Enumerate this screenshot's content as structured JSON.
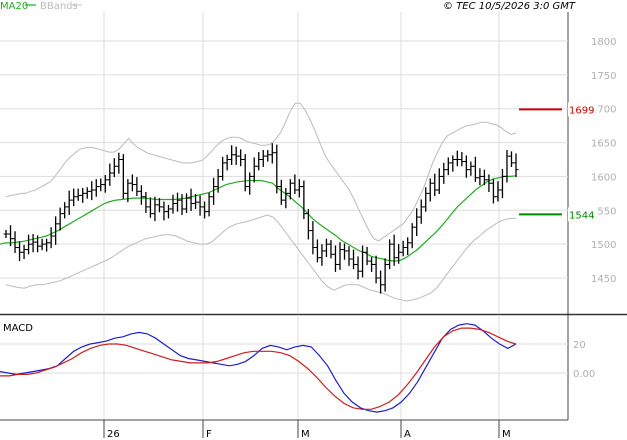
{
  "header": {
    "ma20_label": "MA20",
    "bbands_label": "BBands",
    "timestamp": "© TEC 10/5/2026 3:0 GMT"
  },
  "macd_panel": {
    "title": "MACD"
  },
  "colors": {
    "ma20": "#22aa22",
    "bbands": "#bbbbbb",
    "bars": "#000000",
    "resistance": "#cc0000",
    "support": "#008800",
    "macd": "#1f1fcc",
    "signal": "#cc1f1f",
    "grid": "#dddddd",
    "axis_text": "#b0b0b0"
  },
  "chart_data": [
    {
      "type": "ohlc",
      "y_ticks": [
        1450,
        1500,
        1550,
        1600,
        1650,
        1700,
        1750,
        1800
      ],
      "y_tick_labels": [
        "1450",
        "1500",
        "1550",
        "1600",
        "1650",
        "1700",
        "1750",
        "1800"
      ],
      "ylim": [
        1400,
        1825
      ],
      "x_tick_labels": [
        "26",
        "F",
        "M",
        "A",
        "M"
      ],
      "grid": true,
      "levels": [
        {
          "name": "resistance",
          "value": 1699,
          "label": "1699"
        },
        {
          "name": "support",
          "value": 1544,
          "label": "1544"
        }
      ],
      "closes": [
        1515,
        1508,
        1495,
        1488,
        1492,
        1500,
        1503,
        1497,
        1500,
        1502,
        1512,
        1530,
        1545,
        1555,
        1565,
        1570,
        1572,
        1575,
        1578,
        1580,
        1585,
        1588,
        1595,
        1605,
        1615,
        1625,
        1575,
        1590,
        1588,
        1578,
        1570,
        1555,
        1545,
        1558,
        1555,
        1548,
        1552,
        1560,
        1565,
        1552,
        1568,
        1560,
        1562,
        1555,
        1548,
        1570,
        1585,
        1600,
        1620,
        1625,
        1632,
        1630,
        1625,
        1585,
        1600,
        1615,
        1625,
        1630,
        1632,
        1635,
        1585,
        1565,
        1575,
        1590,
        1580,
        1585,
        1545,
        1520,
        1495,
        1480,
        1490,
        1500,
        1485,
        1470,
        1492,
        1490,
        1478,
        1470,
        1460,
        1488,
        1475,
        1470,
        1450,
        1440,
        1470,
        1500,
        1480,
        1488,
        1495,
        1502,
        1525,
        1540,
        1555,
        1575,
        1590,
        1580,
        1600,
        1610,
        1620,
        1625,
        1625,
        1622,
        1610,
        1615,
        1598,
        1600,
        1595,
        1590,
        1570,
        1580,
        1600,
        1630,
        1620,
        1610
      ],
      "bb_upper": [
        1570,
        1572,
        1573,
        1575,
        1575,
        1578,
        1580,
        1584,
        1588,
        1592,
        1600,
        1610,
        1620,
        1628,
        1634,
        1640,
        1642,
        1643,
        1642,
        1640,
        1638,
        1636,
        1636,
        1640,
        1648,
        1656,
        1648,
        1642,
        1638,
        1634,
        1632,
        1630,
        1628,
        1626,
        1624,
        1622,
        1620,
        1620,
        1620,
        1622,
        1624,
        1630,
        1638,
        1646,
        1652,
        1656,
        1658,
        1658,
        1656,
        1652,
        1650,
        1648,
        1646,
        1646,
        1648,
        1655,
        1665,
        1680,
        1697,
        1708,
        1708,
        1698,
        1684,
        1668,
        1650,
        1632,
        1620,
        1610,
        1600,
        1590,
        1580,
        1566,
        1550,
        1535,
        1520,
        1508,
        1505,
        1510,
        1515,
        1520,
        1525,
        1530,
        1540,
        1550,
        1565,
        1580,
        1600,
        1620,
        1636,
        1650,
        1660,
        1664,
        1668,
        1672,
        1675,
        1676,
        1678,
        1680,
        1680,
        1678,
        1676,
        1672,
        1666,
        1662,
        1664
      ],
      "ma20": [
        1500,
        1502,
        1502,
        1503,
        1504,
        1506,
        1508,
        1510,
        1512,
        1516,
        1520,
        1525,
        1530,
        1535,
        1540,
        1545,
        1550,
        1555,
        1560,
        1563,
        1565,
        1566,
        1567,
        1568,
        1568,
        1568,
        1567,
        1566,
        1566,
        1566,
        1566,
        1567,
        1568,
        1570,
        1572,
        1574,
        1576,
        1580,
        1584,
        1588,
        1590,
        1592,
        1593,
        1594,
        1594,
        1594,
        1592,
        1590,
        1582,
        1576,
        1570,
        1562,
        1555,
        1546,
        1537,
        1530,
        1524,
        1518,
        1512,
        1505,
        1500,
        1495,
        1490,
        1487,
        1482,
        1480,
        1478,
        1476,
        1475,
        1476,
        1480,
        1486,
        1492,
        1500,
        1508,
        1516,
        1525,
        1535,
        1546,
        1556,
        1564,
        1572,
        1580,
        1586,
        1592,
        1596,
        1598,
        1600,
        1600,
        1601
      ],
      "bb_lower": [
        1440,
        1438,
        1436,
        1435,
        1438,
        1440,
        1440,
        1442,
        1444,
        1446,
        1450,
        1454,
        1458,
        1462,
        1466,
        1470,
        1474,
        1478,
        1484,
        1490,
        1496,
        1500,
        1504,
        1508,
        1510,
        1512,
        1514,
        1514,
        1512,
        1508,
        1504,
        1502,
        1500,
        1500,
        1504,
        1512,
        1520,
        1526,
        1530,
        1532,
        1534,
        1537,
        1540,
        1543,
        1540,
        1530,
        1518,
        1506,
        1494,
        1482,
        1470,
        1458,
        1446,
        1437,
        1432,
        1436,
        1440,
        1440,
        1440,
        1436,
        1432,
        1430,
        1428,
        1424,
        1420,
        1418,
        1416,
        1418,
        1420,
        1424,
        1428,
        1436,
        1448,
        1460,
        1472,
        1484,
        1495,
        1505,
        1512,
        1520,
        1526,
        1532,
        1536,
        1538,
        1538
      ]
    },
    {
      "type": "line",
      "title": "MACD",
      "y_ticks": [
        0,
        20
      ],
      "y_tick_labels": [
        "0.00",
        "20"
      ],
      "ylim": [
        -30,
        40
      ],
      "series": [
        {
          "values": [
            1,
            0,
            -1,
            0,
            1,
            2,
            3,
            5,
            10,
            15,
            18,
            20,
            21,
            22,
            24,
            25,
            27,
            28,
            27,
            24,
            20,
            16,
            12,
            10,
            9,
            8,
            7,
            6,
            5,
            6,
            8,
            12,
            17,
            19,
            18,
            16,
            18,
            19,
            18,
            12,
            5,
            -5,
            -14,
            -20,
            -24,
            -26,
            -27,
            -26,
            -24,
            -20,
            -14,
            -6,
            4,
            14,
            24,
            30,
            33,
            34,
            33,
            29,
            24,
            20,
            17,
            20
          ]
        },
        {
          "values": [
            -2,
            -2,
            -1,
            -1,
            0,
            2,
            4,
            7,
            10,
            14,
            17,
            19,
            20,
            20,
            19,
            17,
            15,
            13,
            11,
            9,
            8,
            7,
            7,
            7,
            8,
            10,
            12,
            14,
            15,
            15,
            15,
            14,
            12,
            8,
            3,
            -3,
            -10,
            -16,
            -21,
            -24,
            -25,
            -25,
            -23,
            -20,
            -15,
            -8,
            0,
            9,
            18,
            25,
            29,
            31,
            31,
            30,
            28,
            25,
            22,
            20
          ]
        }
      ]
    }
  ]
}
